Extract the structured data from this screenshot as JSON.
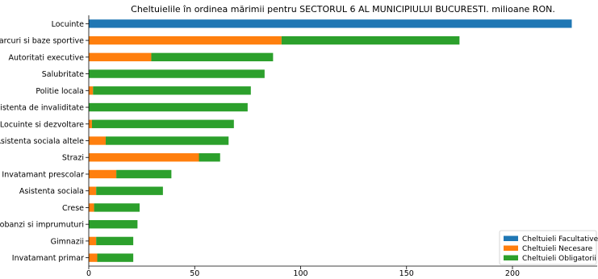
{
  "chart_data": {
    "type": "bar",
    "orientation": "horizontal",
    "stacked": true,
    "title": "Cheltuielile în ordinea mărimii pentru SECTORUL 6 AL MUNICIPIULUI BUCURESTI.  milioane RON.",
    "xlabel": "",
    "ylabel": "",
    "xlim": [
      0,
      240
    ],
    "xticks": [
      "0",
      "50",
      "100",
      "150",
      "200"
    ],
    "grid": false,
    "legend_position": "bottom-right",
    "categories": [
      "Locuinte",
      "Parcuri si baze sportive",
      "Autoritati executive",
      "Salubritate",
      "Politie locala",
      "Asistenta de invaliditate",
      "Locuinte si dezvoltare",
      "Asistenta sociala altele",
      "Strazi",
      "Invatamant prescolar",
      "Asistenta sociala",
      "Crese",
      "Dobanzi si imprumuturi",
      "Gimnazii",
      "Invatamant primar"
    ],
    "series": [
      {
        "name": "Cheltuieli Facultative",
        "color": "#1f77b4",
        "values": [
          228,
          0,
          0,
          0,
          0,
          0,
          0,
          0,
          0,
          0,
          0,
          0,
          0,
          0,
          0
        ]
      },
      {
        "name": "Cheltuieli Necesare",
        "color": "#ff7f0e",
        "values": [
          0,
          91,
          29.5,
          0,
          2,
          0,
          1.5,
          8,
          52,
          13,
          3.5,
          2.5,
          0,
          3.5,
          4
        ]
      },
      {
        "name": "Cheltuieli Obligatorii",
        "color": "#2ca02c",
        "values": [
          0,
          84,
          57.5,
          83,
          74.5,
          75,
          67,
          58,
          10,
          26,
          31.5,
          21.5,
          23,
          17.5,
          17
        ]
      }
    ]
  }
}
